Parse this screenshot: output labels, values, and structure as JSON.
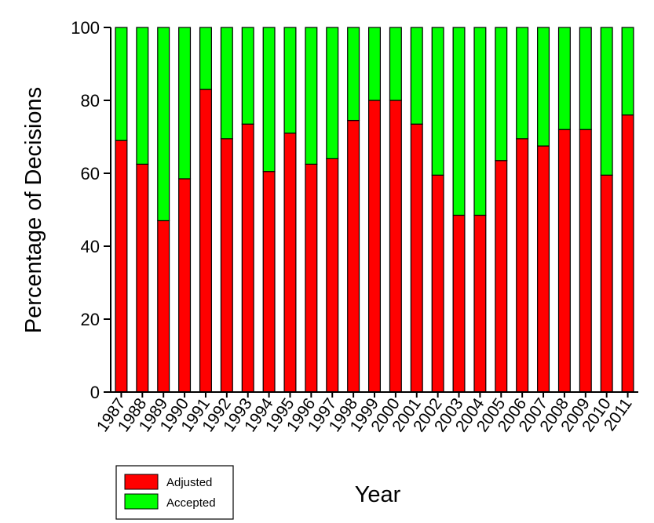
{
  "chart_data": {
    "type": "bar",
    "stacked": true,
    "xlabel": "Year",
    "ylabel": "Percentage of Decisions",
    "ylim": [
      0,
      100
    ],
    "yticks": [
      0,
      20,
      40,
      60,
      80,
      100
    ],
    "categories": [
      "1987",
      "1988",
      "1989",
      "1990",
      "1991",
      "1992",
      "1993",
      "1994",
      "1995",
      "1996",
      "1997",
      "1998",
      "1999",
      "2000",
      "2001",
      "2002",
      "2003",
      "2004",
      "2005",
      "2006",
      "2007",
      "2008",
      "2009",
      "2010",
      "2011"
    ],
    "series": [
      {
        "name": "Adjusted",
        "color": "#ff0000",
        "values": [
          69,
          62.5,
          47,
          58.5,
          83,
          69.5,
          73.5,
          60.5,
          71,
          62.5,
          64,
          74.5,
          80,
          80,
          73.5,
          59.5,
          48.5,
          48.5,
          63.5,
          69.5,
          67.5,
          72,
          72,
          59.5,
          76
        ]
      },
      {
        "name": "Accepted",
        "color": "#00ff00",
        "values": [
          31,
          37.5,
          53,
          41.5,
          17,
          30.5,
          26.5,
          39.5,
          29,
          37.5,
          36,
          25.5,
          20,
          20,
          26.5,
          40.5,
          51.5,
          51.5,
          36.5,
          30.5,
          32.5,
          28,
          28,
          40.5,
          24
        ]
      }
    ],
    "legend_position": "bottom-left",
    "grid": false
  }
}
